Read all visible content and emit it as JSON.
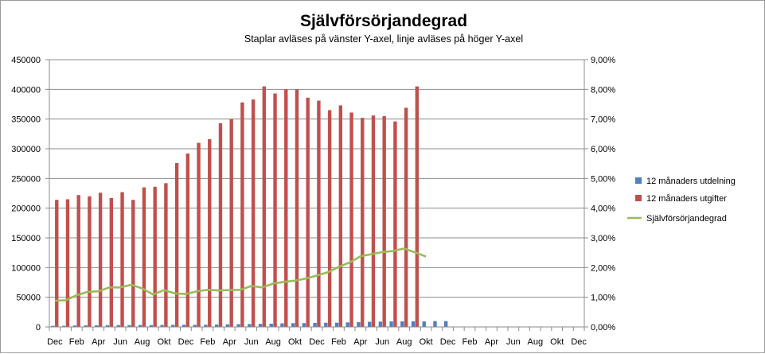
{
  "chart_data": {
    "type": "bar",
    "title": "Självförsörjandegrad",
    "subtitle": "Staplar avläses på vänster Y-axel, linje avläses på höger Y-axel",
    "y_left": {
      "min": 0,
      "max": 450000,
      "step": 50000,
      "tick_labels": [
        "0",
        "50000",
        "100000",
        "150000",
        "200000",
        "250000",
        "300000",
        "350000",
        "400000",
        "450000"
      ]
    },
    "y_right": {
      "min": 0,
      "max": 9,
      "step": 1,
      "tick_labels": [
        "0,00%",
        "1,00%",
        "2,00%",
        "3,00%",
        "4,00%",
        "5,00%",
        "6,00%",
        "7,00%",
        "8,00%",
        "9,00%"
      ]
    },
    "x_tick_labels": [
      "Dec",
      "Feb",
      "Apr",
      "Jun",
      "Aug",
      "Okt",
      "Dec",
      "Feb",
      "Apr",
      "Jun",
      "Aug",
      "Okt",
      "Dec",
      "Feb",
      "Apr",
      "Jun",
      "Aug",
      "Okt",
      "Dec",
      "Feb",
      "Apr",
      "Jun",
      "Aug",
      "Okt",
      "Dec"
    ],
    "category_count": 49,
    "grid": true,
    "legend_position": "right",
    "series": [
      {
        "name": "12 månaders utdelning",
        "kind": "bar",
        "axis": "left",
        "color": "#4f81bd",
        "values": [
          1900,
          1950,
          2450,
          2600,
          2750,
          2900,
          3200,
          3100,
          3400,
          3150,
          3350,
          3600,
          3700,
          3600,
          3750,
          4100,
          4450,
          4700,
          4900,
          5150,
          5500,
          6050,
          6250,
          6350,
          6750,
          7000,
          7100,
          7650,
          8100,
          8700,
          9000,
          9300,
          9400,
          9600,
          9300,
          9850,
          9750
        ]
      },
      {
        "name": "12 månaders utgifter",
        "kind": "bar",
        "axis": "left",
        "color": "#c0504d",
        "values": [
          214000,
          215000,
          222000,
          220000,
          226000,
          217000,
          227000,
          214000,
          235000,
          236000,
          242000,
          276000,
          292000,
          310000,
          316000,
          343000,
          350000,
          378000,
          383000,
          405000,
          393000,
          400000,
          400000,
          386000,
          381000,
          365000,
          373000,
          361000,
          352000,
          356000,
          355000,
          346000,
          369000,
          405000
        ]
      },
      {
        "name": "Självförsörjandegrad",
        "kind": "line",
        "axis": "right",
        "color": "#9bbb59",
        "values": [
          0.88,
          0.9,
          1.07,
          1.18,
          1.2,
          1.33,
          1.33,
          1.42,
          1.3,
          1.09,
          1.24,
          1.13,
          1.11,
          1.2,
          1.25,
          1.23,
          1.24,
          1.25,
          1.38,
          1.33,
          1.46,
          1.52,
          1.56,
          1.63,
          1.73,
          1.84,
          2.02,
          2.17,
          2.38,
          2.45,
          2.52,
          2.56,
          2.64,
          2.51,
          2.37
        ]
      }
    ]
  }
}
